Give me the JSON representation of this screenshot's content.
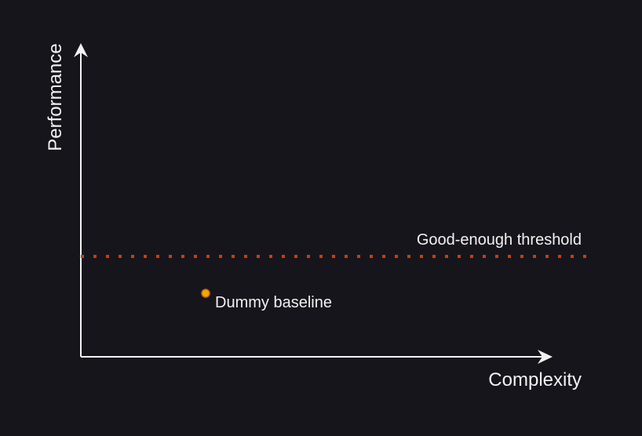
{
  "axes": {
    "x_label": "Complexity",
    "y_label": "Performance"
  },
  "threshold": {
    "label": "Good-enough threshold",
    "color": "#c5400f"
  },
  "baseline": {
    "label": "Dummy baseline",
    "fill_color": "#f5a800",
    "stroke_color": "#c86a00"
  },
  "colors": {
    "background": "#17151c",
    "foreground": "#f2f2f2"
  }
}
